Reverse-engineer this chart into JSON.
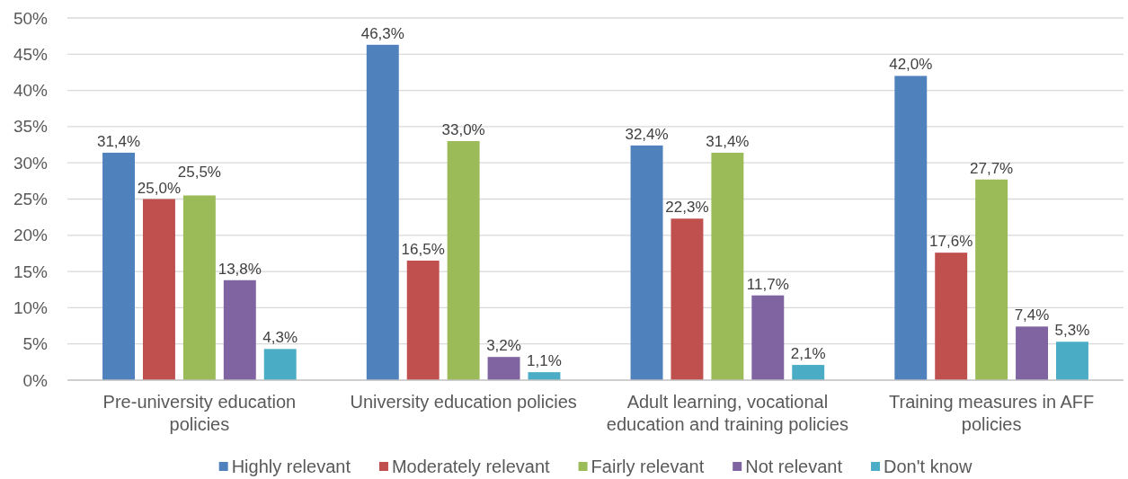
{
  "chart_data": {
    "type": "bar",
    "categories": [
      "Pre-university education policies",
      "University education policies",
      "Adult learning, vocational education and training policies",
      "Training measures in AFF policies"
    ],
    "series": [
      {
        "name": "Highly relevant",
        "color": "#4f81bd",
        "values": [
          31.4,
          46.3,
          32.4,
          42.0
        ],
        "value_labels": [
          "31,4%",
          "46,3%",
          "32,4%",
          "42,0%"
        ]
      },
      {
        "name": "Moderately relevant",
        "color": "#c0504d",
        "values": [
          25.0,
          16.5,
          22.3,
          17.6
        ],
        "value_labels": [
          "25,0%",
          "16,5%",
          "22,3%",
          "17,6%"
        ]
      },
      {
        "name": "Fairly relevant",
        "color": "#9bbb59",
        "values": [
          25.5,
          33.0,
          31.4,
          27.7
        ],
        "value_labels": [
          "25,5%",
          "33,0%",
          "31,4%",
          "27,7%"
        ]
      },
      {
        "name": "Not relevant",
        "color": "#8064a2",
        "values": [
          13.8,
          3.2,
          11.7,
          7.4
        ],
        "value_labels": [
          "13,8%",
          "3,2%",
          "11,7%",
          "7,4%"
        ]
      },
      {
        "name": "Don't know",
        "color": "#4bacc6",
        "values": [
          4.3,
          1.1,
          2.1,
          5.3
        ],
        "value_labels": [
          "4,3%",
          "1,1%",
          "2,1%",
          "5,3%"
        ]
      }
    ],
    "ylim": [
      0,
      50
    ],
    "yticks": [
      {
        "value": 0,
        "label": "0%"
      },
      {
        "value": 5,
        "label": "5%"
      },
      {
        "value": 10,
        "label": "10%"
      },
      {
        "value": 15,
        "label": "15%"
      },
      {
        "value": 20,
        "label": "20%"
      },
      {
        "value": 25,
        "label": "25%"
      },
      {
        "value": 30,
        "label": "30%"
      },
      {
        "value": 35,
        "label": "35%"
      },
      {
        "value": 40,
        "label": "40%"
      },
      {
        "value": 45,
        "label": "45%"
      },
      {
        "value": 50,
        "label": "50%"
      }
    ],
    "grid": "y",
    "legend": "bottom"
  }
}
